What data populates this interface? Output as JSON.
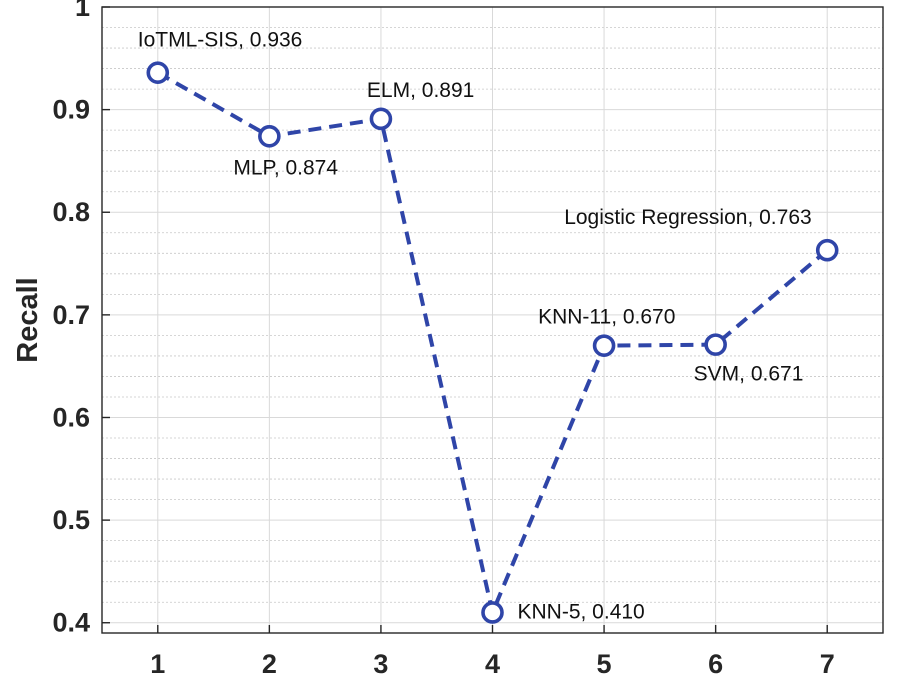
{
  "chart_data": {
    "type": "line",
    "title": "",
    "xlabel": "",
    "ylabel": "Recall",
    "x": [
      1,
      2,
      3,
      4,
      5,
      6,
      7
    ],
    "xlim": [
      0.5,
      7.5
    ],
    "ylim": [
      0.39,
      1.0
    ],
    "xticks": [
      "1",
      "2",
      "3",
      "4",
      "5",
      "6",
      "7"
    ],
    "yticks": [
      "0.4",
      "0.5",
      "0.6",
      "0.7",
      "0.8",
      "0.9",
      "1"
    ],
    "grid": true,
    "minor_grid": true,
    "series": [
      {
        "name": "Recall",
        "color": "#2f45a8",
        "line_style": "dashed",
        "marker": "circle",
        "values": [
          0.936,
          0.874,
          0.891,
          0.41,
          0.67,
          0.671,
          0.763
        ],
        "labels": [
          "IoTML-SIS, 0.936",
          "MLP, 0.874",
          "ELM, 0.891",
          "KNN-5, 0.410",
          "KNN-11, 0.670",
          "SVM, 0.671",
          "Logistic Regression, 0.763"
        ]
      }
    ]
  }
}
